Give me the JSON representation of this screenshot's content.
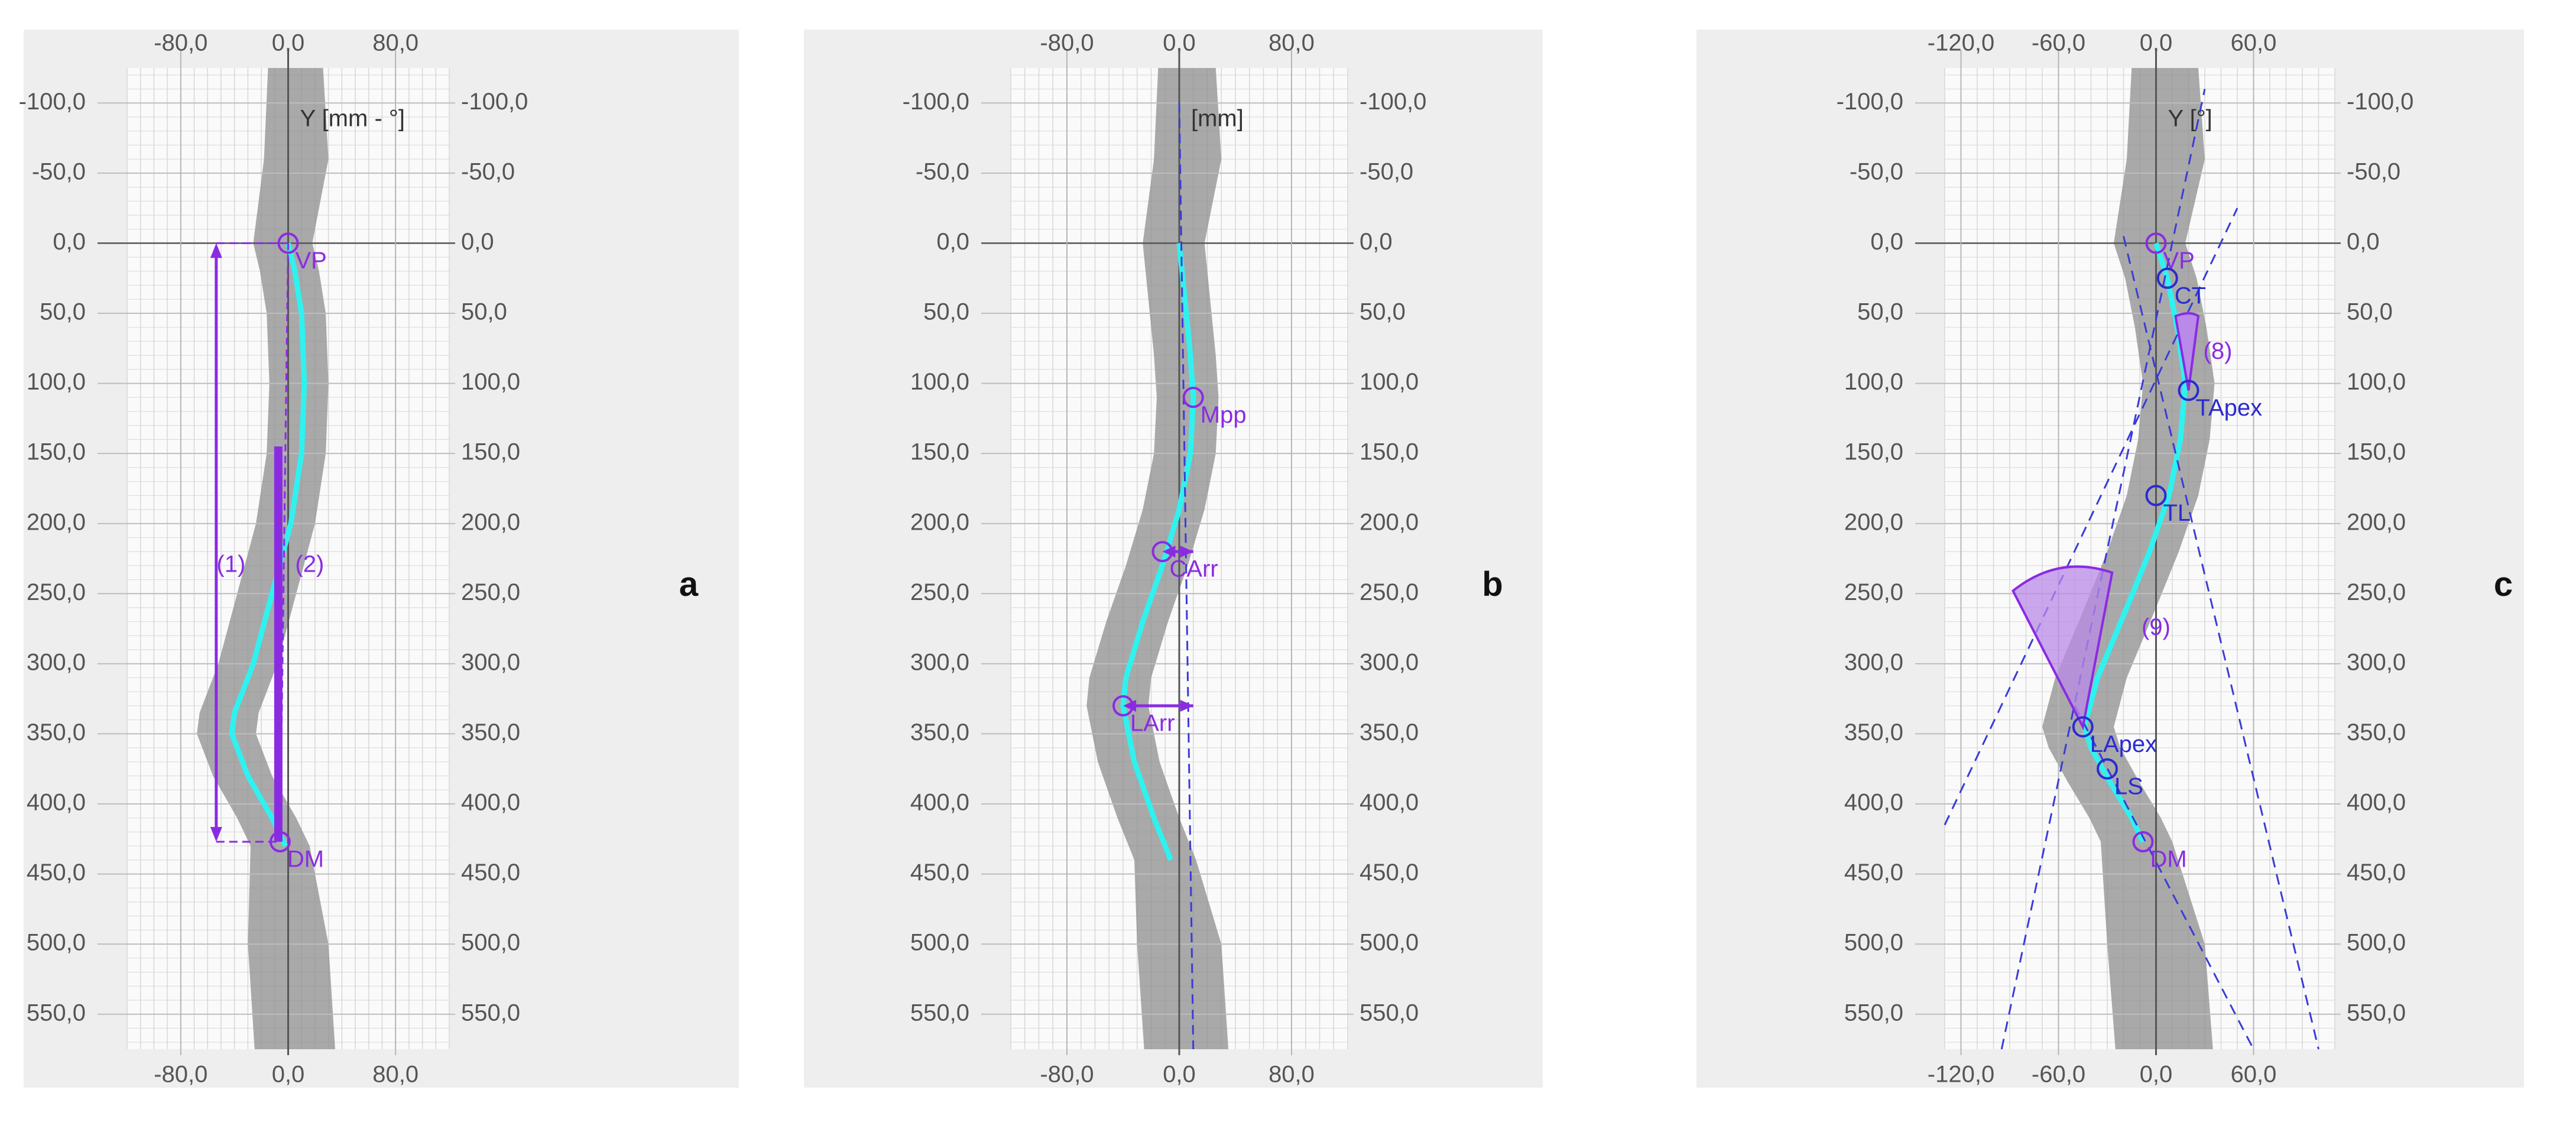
{
  "colors": {
    "panel_bg": "#eeeeee",
    "plot_bg": "#fafafa",
    "grid": "#d7d7d7",
    "axis": "#555555",
    "tick_text": "#555555",
    "silhouette": "#8d8d8d",
    "spine_line": "#2ff2f0",
    "annotation": "#8a2be2",
    "landmark": "#2b2bd0",
    "sector_fill": "#b98ae8"
  },
  "chart_data": [
    {
      "type": "line",
      "panel_label": "a",
      "axis_title": "Y [mm - °]",
      "x_ticks": [
        "-80,0",
        "0,0",
        "80,0"
      ],
      "x_tick_values": [
        -80,
        0,
        80
      ],
      "y_ticks": [
        "-100,0",
        "-50,0",
        "0,0",
        "50,0",
        "100,0",
        "150,0",
        "200,0",
        "250,0",
        "300,0",
        "350,0",
        "400,0",
        "450,0",
        "500,0",
        "550,0"
      ],
      "y_tick_values": [
        -100,
        -50,
        0,
        50,
        100,
        150,
        200,
        250,
        300,
        350,
        400,
        450,
        500,
        550
      ],
      "xlim": [
        -120,
        120
      ],
      "ylim": [
        -125,
        575
      ],
      "series": [
        {
          "x": [
            0,
            5,
            10,
            12,
            10,
            2,
            -12,
            -26,
            -40,
            -42,
            -30,
            -12,
            -2
          ],
          "y": [
            0,
            20,
            50,
            100,
            150,
            200,
            250,
            300,
            335,
            350,
            380,
            410,
            430
          ]
        }
      ],
      "points": [
        {
          "label": "VP",
          "x": 0,
          "y": 0
        },
        {
          "label": "DM",
          "x": -6,
          "y": 427
        }
      ],
      "measures": [
        {
          "label": "(1)",
          "from": 0,
          "to": 427
        },
        {
          "label": "(2)",
          "from": 145,
          "to": 427
        }
      ]
    },
    {
      "type": "line",
      "panel_label": "b",
      "axis_title": "[mm]",
      "x_ticks": [
        "-80,0",
        "0,0",
        "80,0"
      ],
      "x_tick_values": [
        -80,
        0,
        80
      ],
      "y_ticks": [
        "-100,0",
        "-50,0",
        "0,0",
        "50,0",
        "100,0",
        "150,0",
        "200,0",
        "250,0",
        "300,0",
        "350,0",
        "400,0",
        "450,0",
        "500,0",
        "550,0"
      ],
      "y_tick_values": [
        -100,
        -50,
        0,
        50,
        100,
        150,
        200,
        250,
        300,
        350,
        400,
        450,
        500,
        550
      ],
      "xlim": [
        -120,
        120
      ],
      "ylim": [
        -125,
        575
      ],
      "series": [
        {
          "x": [
            0,
            4,
            8,
            10,
            8,
            0,
            -12,
            -26,
            -38,
            -40,
            -32,
            -18,
            -6
          ],
          "y": [
            0,
            40,
            80,
            110,
            150,
            190,
            230,
            270,
            310,
            330,
            370,
            410,
            440
          ]
        }
      ],
      "points": [
        {
          "label": "Mpp",
          "x": 10,
          "y": 110
        },
        {
          "label": "CArr",
          "x": -12,
          "y": 220
        },
        {
          "label": "LArr",
          "x": -40,
          "y": 330
        }
      ]
    },
    {
      "type": "line",
      "panel_label": "c",
      "axis_title": "Y [°]",
      "x_ticks": [
        "-120,0",
        "-60,0",
        "0,0",
        "60,0"
      ],
      "x_tick_values": [
        -120,
        -60,
        0,
        60
      ],
      "y_ticks": [
        "-100,0",
        "-50,0",
        "0,0",
        "50,0",
        "100,0",
        "150,0",
        "200,0",
        "250,0",
        "300,0",
        "350,0",
        "400,0",
        "450,0",
        "500,0",
        "550,0"
      ],
      "y_tick_values": [
        -100,
        -50,
        0,
        50,
        100,
        150,
        200,
        250,
        300,
        350,
        400,
        450,
        500,
        550
      ],
      "xlim": [
        -130,
        110
      ],
      "ylim": [
        -125,
        575
      ],
      "series": [
        {
          "x": [
            0,
            7,
            13,
            18,
            15,
            8,
            -4,
            -18,
            -36,
            -44,
            -40,
            -28,
            -15,
            -8
          ],
          "y": [
            0,
            25,
            60,
            100,
            140,
            180,
            220,
            260,
            310,
            345,
            360,
            385,
            410,
            427
          ]
        }
      ],
      "points": [
        {
          "label": "VP",
          "x": 0,
          "y": 0
        },
        {
          "label": "CT",
          "x": 7,
          "y": 25
        },
        {
          "label": "TApex",
          "x": 20,
          "y": 105
        },
        {
          "label": "TL",
          "x": 0,
          "y": 180
        },
        {
          "label": "LApex",
          "x": -45,
          "y": 345
        },
        {
          "label": "LS",
          "x": -30,
          "y": 375
        },
        {
          "label": "DM",
          "x": -8,
          "y": 427
        }
      ],
      "angles": [
        {
          "label": "(8)"
        },
        {
          "label": "(9)"
        }
      ]
    }
  ]
}
